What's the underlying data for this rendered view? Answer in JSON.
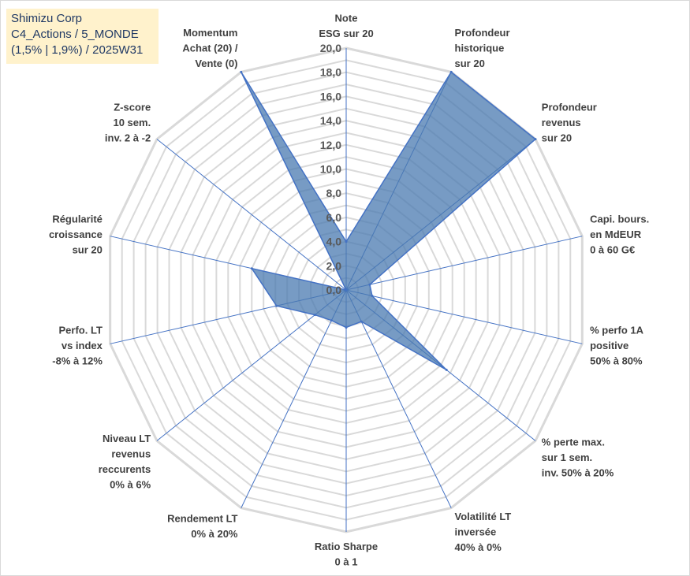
{
  "title_lines": [
    "Shimizu Corp",
    "C4_Actions / 5_MONDE",
    "(1,5% | 1,9%) / 2025W31"
  ],
  "chart_data": {
    "type": "radar",
    "axes": [
      {
        "lines": [
          "Note",
          "ESG sur 20"
        ]
      },
      {
        "lines": [
          "Profondeur",
          "historique",
          "sur 20"
        ]
      },
      {
        "lines": [
          "Profondeur",
          "revenus",
          "sur 20"
        ]
      },
      {
        "lines": [
          "Capi. bours.",
          "en MdEUR",
          "0 à 60 G€"
        ]
      },
      {
        "lines": [
          "% perfo 1A",
          "positive",
          "50% à 80%"
        ]
      },
      {
        "lines": [
          "% perte max.",
          "sur 1 sem.",
          "inv. 50% à 20%"
        ]
      },
      {
        "lines": [
          "Volatilité LT",
          "inversée",
          "40% à 0%"
        ]
      },
      {
        "lines": [
          "Ratio Sharpe",
          "0 à 1"
        ]
      },
      {
        "lines": [
          "Rendement LT",
          "0% à 20%"
        ]
      },
      {
        "lines": [
          "Niveau LT",
          "revenus",
          "reccurents",
          "0% à 6%"
        ]
      },
      {
        "lines": [
          "Perfo. LT",
          "vs index",
          "-8% à 12%"
        ]
      },
      {
        "lines": [
          "Régularité",
          "croissance",
          "sur 20"
        ]
      },
      {
        "lines": [
          "Z-score",
          "10 sem.",
          "inv. 2 à -2"
        ]
      },
      {
        "lines": [
          "Momentum",
          "Achat (20) /",
          "Vente (0)"
        ]
      }
    ],
    "values": [
      4.0,
      20.0,
      20.0,
      2.0,
      2.2,
      10.6,
      2.9,
      3.1,
      2.8,
      3.3,
      5.9,
      8.0,
      0.0,
      20.0
    ],
    "rmin": 0,
    "rmax": 20,
    "ticks": [
      "0,0",
      "2,0",
      "4,0",
      "6,0",
      "8,0",
      "10,0",
      "12,0",
      "14,0",
      "16,0",
      "18,0",
      "20,0"
    ],
    "gridline_step": 1,
    "colors": {
      "fill": "#4a7ab0",
      "line": "#4472c4",
      "grid": "#d9d9d9",
      "spoke": "#4472c4"
    }
  }
}
